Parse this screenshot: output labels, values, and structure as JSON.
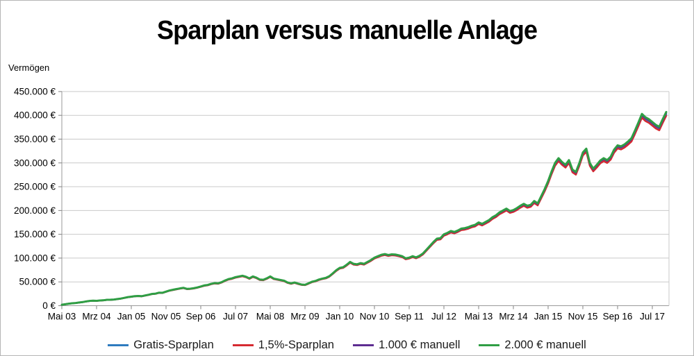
{
  "page": {
    "title": "Sparplan versus manuelle Anlage",
    "y_axis_label": "Vermögen"
  },
  "chart_data": {
    "type": "line",
    "title": "Sparplan versus manuelle Anlage",
    "ylabel": "Vermögen",
    "xlabel": "",
    "grid": "horizontal",
    "legend_position": "bottom",
    "y_range_eur": [
      0,
      450000
    ],
    "y_tick_step_eur": 50000,
    "y_tick_labels": [
      "450.000 €",
      "400.000 €",
      "350.000 €",
      "300.000 €",
      "250.000 €",
      "200.000 €",
      "150.000 €",
      "100.000 €",
      "50.000 €",
      "0 €"
    ],
    "x_tick_labels": [
      "Mai 03",
      "Mrz 04",
      "Jan 05",
      "Nov 05",
      "Sep 06",
      "Jul 07",
      "Mai 08",
      "Mrz 09",
      "Jan 10",
      "Nov 10",
      "Sep 11",
      "Jul 12",
      "Mai 13",
      "Mrz 14",
      "Jan 15",
      "Nov 15",
      "Sep 16",
      "Jul 17"
    ],
    "x_start_month": "Mai 2003",
    "x_end_month": "Nov 2017",
    "x_interval": "monatlich",
    "values_keur": [
      2,
      3.1,
      4.2,
      5.1,
      5.7,
      6.7,
      7.6,
      9,
      10,
      10.6,
      10.3,
      11,
      11.4,
      12.4,
      12.5,
      13,
      14,
      15,
      16.5,
      18,
      19,
      20,
      20.5,
      20,
      21.6,
      23,
      24.8,
      25.4,
      27.4,
      27.2,
      29.6,
      32,
      33.5,
      35,
      36.4,
      37.6,
      35.4,
      35.8,
      36.8,
      38.4,
      40.4,
      42.6,
      43.6,
      46,
      47.5,
      47,
      49.5,
      53,
      56,
      57.5,
      60,
      61.5,
      63,
      61,
      57.5,
      61.5,
      59,
      55,
      54.5,
      57.5,
      61.5,
      57,
      55.5,
      54,
      52.5,
      48.8,
      46.9,
      48.8,
      46.5,
      44.5,
      44,
      47,
      50.3,
      52,
      55,
      57,
      58.5,
      62,
      68,
      74.5,
      79.5,
      81,
      86,
      92,
      88,
      87,
      89.5,
      88,
      92,
      96,
      101,
      104,
      107,
      108.5,
      106.5,
      108,
      107.5,
      106,
      104,
      99.5,
      101,
      104,
      101.5,
      105,
      110,
      118,
      126,
      134,
      141,
      142,
      150,
      153,
      157,
      155,
      158,
      162,
      163,
      165,
      168,
      170,
      175,
      172,
      176,
      180,
      186,
      190,
      196,
      200,
      204,
      199,
      201,
      205,
      210,
      214,
      210,
      212,
      220,
      215,
      230,
      245,
      262,
      282,
      300,
      310,
      302,
      296,
      306,
      286,
      281,
      300,
      322,
      330,
      300,
      288,
      296,
      305,
      310,
      306,
      313,
      328,
      337,
      335,
      339,
      345,
      352,
      368,
      385,
      403,
      396,
      392,
      386,
      380,
      376,
      392,
      407
    ],
    "series": [
      {
        "name": "Gratis-Sparplan",
        "color": "#2e7bbf",
        "offset_factor": 0.988
      },
      {
        "name": "1,5%-Sparplan",
        "color": "#d62a31",
        "offset_factor": 0.98
      },
      {
        "name": "1.000 € manuell",
        "color": "#5e2d91",
        "offset_factor": 0.994
      },
      {
        "name": "2.000 € manuell",
        "color": "#2f9e44",
        "offset_factor": 1.0
      }
    ]
  }
}
